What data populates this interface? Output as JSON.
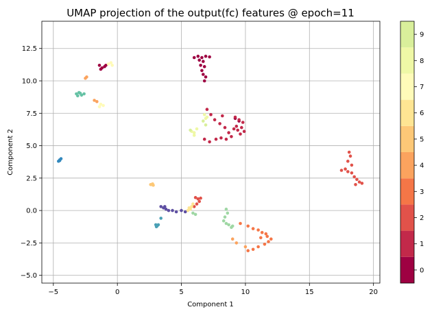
{
  "chart_data": {
    "type": "scatter",
    "title": "UMAP projection of the output(fc) features @ epoch=11",
    "xlabel": "Component 1",
    "ylabel": "Component 2",
    "xlim": [
      -5.9,
      20.5
    ],
    "ylim": [
      -5.6,
      14.6
    ],
    "xticks": [
      -5,
      0,
      5,
      10,
      15,
      20
    ],
    "yticks": [
      -5.0,
      -2.5,
      0.0,
      2.5,
      5.0,
      7.5,
      10.0,
      12.5
    ],
    "xtick_labels": [
      "−5",
      "0",
      "5",
      "10",
      "15",
      "20"
    ],
    "ytick_labels": [
      "−5.0",
      "−2.5",
      "0.0",
      "2.5",
      "5.0",
      "7.5",
      "10.0",
      "12.5"
    ],
    "grid": true,
    "colorbar": {
      "ticks": [
        0,
        1,
        2,
        3,
        4,
        5,
        6,
        7,
        8,
        9
      ],
      "tick_labels": [
        "0",
        "1",
        "2",
        "3",
        "4",
        "5",
        "6",
        "7",
        "8",
        "9"
      ],
      "range": [
        -0.5,
        9.5
      ],
      "colors": [
        "#9e0142",
        "#c2294a",
        "#e1524a",
        "#f57647",
        "#fba35e",
        "#fdc877",
        "#fee593",
        "#fffbb9",
        "#eff8a6",
        "#d9ef9b"
      ]
    },
    "class_colors": {
      "0": "#9e0142",
      "1": "#c2294a",
      "2": "#e1524a",
      "3": "#f57647",
      "4": "#fba35e",
      "5": "#fdc877",
      "6": "#fee593",
      "7": "#fffbb9",
      "8": "#eff8a6",
      "9": "#d9ef9b",
      "teal": "#66c2a5",
      "lightgreen": "#9fd7a4",
      "blue": "#3288bd",
      "steelblue": "#4aa0b5",
      "purple": "#5e4fa2"
    },
    "series": [
      {
        "color_key": "0",
        "points": [
          [
            6.0,
            11.8
          ],
          [
            6.3,
            11.9
          ],
          [
            6.6,
            11.8
          ],
          [
            6.9,
            11.9
          ],
          [
            7.2,
            11.85
          ],
          [
            6.4,
            11.6
          ],
          [
            6.7,
            11.5
          ],
          [
            6.5,
            11.2
          ],
          [
            6.8,
            11.1
          ],
          [
            6.6,
            10.8
          ],
          [
            6.7,
            10.5
          ],
          [
            6.9,
            10.3
          ],
          [
            6.8,
            10.0
          ],
          [
            -1.4,
            11.2
          ],
          [
            -1.2,
            11.0
          ],
          [
            -1.0,
            11.1
          ],
          [
            -1.3,
            10.9
          ],
          [
            -0.9,
            11.2
          ],
          [
            9.2,
            7.1
          ],
          [
            9.5,
            6.9
          ]
        ]
      },
      {
        "color_key": "1",
        "points": [
          [
            7.0,
            7.8
          ],
          [
            7.3,
            7.4
          ],
          [
            7.6,
            7.0
          ],
          [
            8.0,
            6.7
          ],
          [
            8.4,
            6.4
          ],
          [
            8.7,
            6.0
          ],
          [
            8.9,
            5.7
          ],
          [
            8.5,
            5.5
          ],
          [
            8.1,
            5.6
          ],
          [
            7.7,
            5.5
          ],
          [
            7.2,
            5.3
          ],
          [
            6.8,
            5.5
          ],
          [
            9.2,
            7.2
          ],
          [
            9.5,
            7.0
          ],
          [
            9.8,
            6.8
          ],
          [
            9.7,
            6.4
          ],
          [
            9.9,
            6.1
          ],
          [
            9.6,
            5.9
          ],
          [
            9.3,
            6.5
          ],
          [
            8.2,
            7.3
          ],
          [
            9.1,
            6.3
          ],
          [
            9.4,
            6.2
          ]
        ]
      },
      {
        "color_key": "2",
        "points": [
          [
            18.1,
            4.5
          ],
          [
            18.2,
            4.2
          ],
          [
            18.0,
            3.8
          ],
          [
            18.3,
            3.5
          ],
          [
            17.8,
            3.2
          ],
          [
            17.5,
            3.1
          ],
          [
            18.0,
            3.0
          ],
          [
            18.3,
            2.9
          ],
          [
            18.5,
            2.6
          ],
          [
            18.7,
            2.4
          ],
          [
            18.9,
            2.2
          ],
          [
            19.1,
            2.1
          ],
          [
            18.6,
            2.0
          ],
          [
            6.1,
            1.0
          ],
          [
            6.3,
            0.9
          ],
          [
            6.4,
            0.7
          ],
          [
            6.2,
            0.5
          ],
          [
            6.0,
            0.3
          ],
          [
            6.5,
            0.95
          ]
        ]
      },
      {
        "color_key": "3",
        "points": [
          [
            9.6,
            -1.0
          ],
          [
            10.2,
            -1.2
          ],
          [
            10.6,
            -1.4
          ],
          [
            11.0,
            -1.5
          ],
          [
            11.3,
            -1.7
          ],
          [
            11.7,
            -2.0
          ],
          [
            12.0,
            -2.2
          ],
          [
            11.8,
            -2.4
          ],
          [
            11.5,
            -2.6
          ],
          [
            11.0,
            -2.8
          ],
          [
            10.6,
            -3.0
          ],
          [
            10.2,
            -3.1
          ],
          [
            11.2,
            -2.1
          ],
          [
            11.6,
            -1.8
          ]
        ]
      },
      {
        "color_key": "4",
        "points": [
          [
            -2.5,
            10.2
          ],
          [
            -2.4,
            10.3
          ],
          [
            -1.8,
            8.5
          ],
          [
            -1.6,
            8.4
          ],
          [
            9.0,
            -2.2
          ],
          [
            9.3,
            -2.5
          ],
          [
            10.0,
            -2.8
          ]
        ]
      },
      {
        "color_key": "5",
        "points": [
          [
            2.6,
            2.0
          ],
          [
            2.7,
            2.0
          ],
          [
            2.8,
            1.95
          ],
          [
            2.75,
            2.05
          ]
        ]
      },
      {
        "color_key": "6",
        "points": [
          [
            5.9,
            0.5
          ],
          [
            5.8,
            0.3
          ],
          [
            5.7,
            0.1
          ],
          [
            5.6,
            0.2
          ],
          [
            5.5,
            0.0
          ]
        ]
      },
      {
        "color_key": "7",
        "points": [
          [
            -0.7,
            11.3
          ],
          [
            -0.5,
            11.4
          ],
          [
            -0.4,
            11.2
          ],
          [
            -1.3,
            8.2
          ],
          [
            -1.1,
            8.1
          ],
          [
            -1.4,
            8.0
          ]
        ]
      },
      {
        "color_key": "8",
        "points": [
          [
            5.8,
            6.1
          ],
          [
            6.0,
            6.0
          ],
          [
            6.2,
            6.3
          ],
          [
            6.8,
            7.4
          ],
          [
            6.9,
            7.1
          ],
          [
            7.0,
            7.2
          ],
          [
            6.0,
            5.8
          ]
        ]
      },
      {
        "color_key": "9",
        "points": [
          [
            6.9,
            6.6
          ],
          [
            6.7,
            6.9
          ],
          [
            5.7,
            6.2
          ]
        ]
      },
      {
        "color_key": "teal",
        "points": [
          [
            -3.2,
            9.0
          ],
          [
            -3.0,
            9.1
          ],
          [
            -2.8,
            8.9
          ],
          [
            -3.1,
            8.85
          ],
          [
            -2.9,
            9.05
          ],
          [
            -2.6,
            9.0
          ]
        ]
      },
      {
        "color_key": "lightgreen",
        "points": [
          [
            8.3,
            -0.8
          ],
          [
            8.5,
            -1.0
          ],
          [
            8.7,
            -1.1
          ],
          [
            8.9,
            -1.3
          ],
          [
            8.4,
            -0.5
          ],
          [
            8.6,
            -0.2
          ],
          [
            8.5,
            0.1
          ],
          [
            9.0,
            -1.2
          ],
          [
            5.9,
            -0.2
          ],
          [
            6.1,
            -0.3
          ]
        ]
      },
      {
        "color_key": "blue",
        "points": [
          [
            -4.6,
            3.8
          ],
          [
            -4.5,
            3.9
          ],
          [
            -4.4,
            4.0
          ],
          [
            -4.5,
            3.85
          ]
        ]
      },
      {
        "color_key": "steelblue",
        "points": [
          [
            3.0,
            -1.1
          ],
          [
            3.1,
            -1.2
          ],
          [
            3.2,
            -1.1
          ],
          [
            3.05,
            -1.25
          ],
          [
            3.4,
            -0.6
          ]
        ]
      },
      {
        "color_key": "purple",
        "points": [
          [
            3.4,
            0.3
          ],
          [
            3.6,
            0.2
          ],
          [
            3.8,
            0.1
          ],
          [
            4.0,
            0.0
          ],
          [
            4.3,
            0.0
          ],
          [
            4.6,
            -0.1
          ],
          [
            5.0,
            0.0
          ],
          [
            5.3,
            -0.1
          ],
          [
            3.7,
            0.3
          ]
        ]
      }
    ]
  }
}
